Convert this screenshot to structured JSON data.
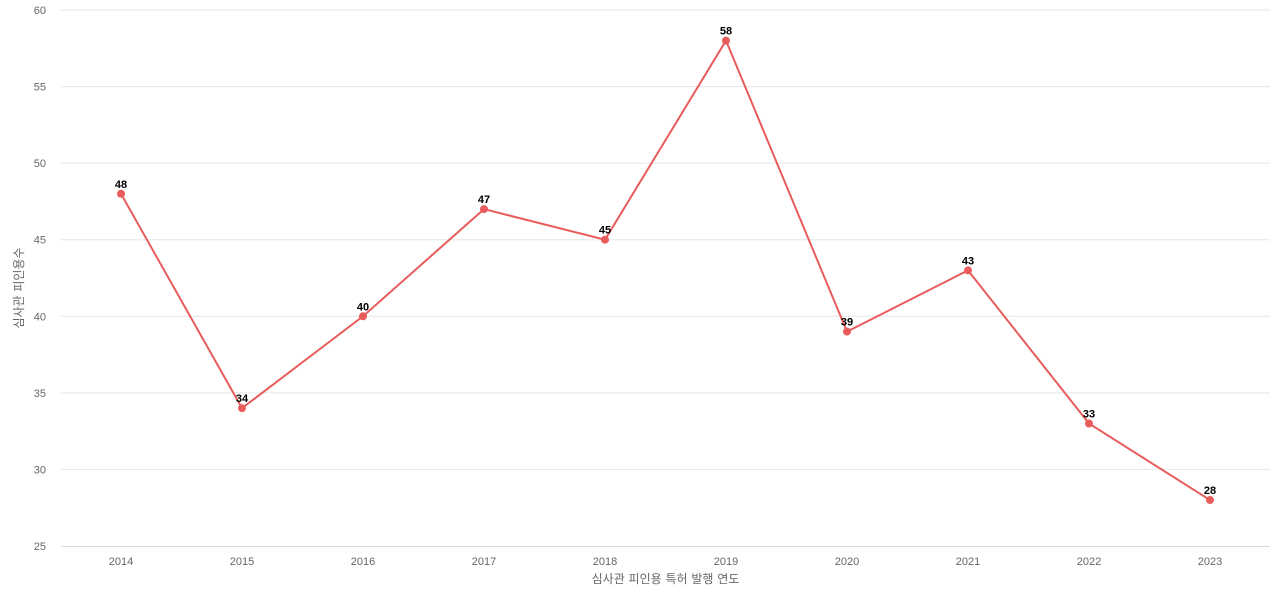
{
  "chart_data": {
    "type": "line",
    "title": "",
    "xlabel": "심사관 피인용 특허 발행 연도",
    "ylabel": "심사관 피인용수",
    "categories": [
      "2014",
      "2015",
      "2016",
      "2017",
      "2018",
      "2019",
      "2020",
      "2021",
      "2022",
      "2023"
    ],
    "series": [
      {
        "values": [
          48,
          34,
          40,
          47,
          45,
          58,
          39,
          43,
          33,
          28
        ],
        "color": "#e85c5c"
      }
    ],
    "ylim": [
      25,
      60
    ],
    "yticks": [
      "25",
      "30",
      "35",
      "40",
      "45",
      "50",
      "55",
      "60"
    ],
    "grid": true,
    "legend": "none",
    "data_labels": true
  }
}
